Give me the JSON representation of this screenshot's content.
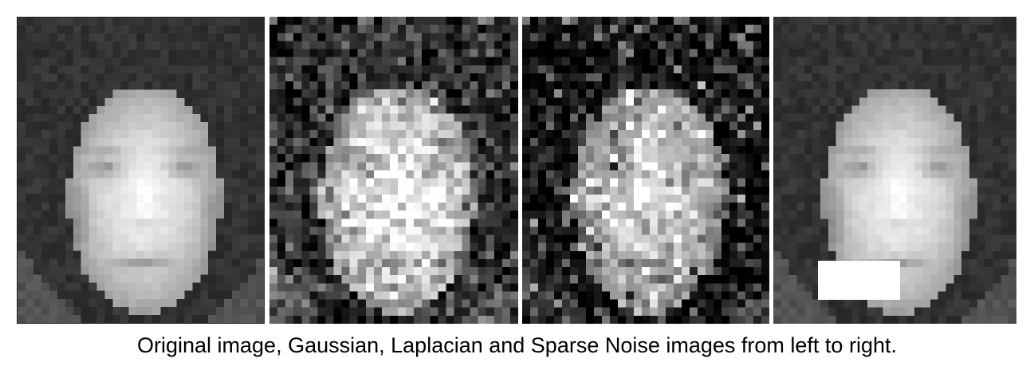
{
  "panels": [
    {
      "noise": "none"
    },
    {
      "noise": "gaussian"
    },
    {
      "noise": "laplacian"
    },
    {
      "noise": "sparse"
    }
  ],
  "caption": "Original image, Gaussian, Laplacian and Sparse Noise images from left to right."
}
